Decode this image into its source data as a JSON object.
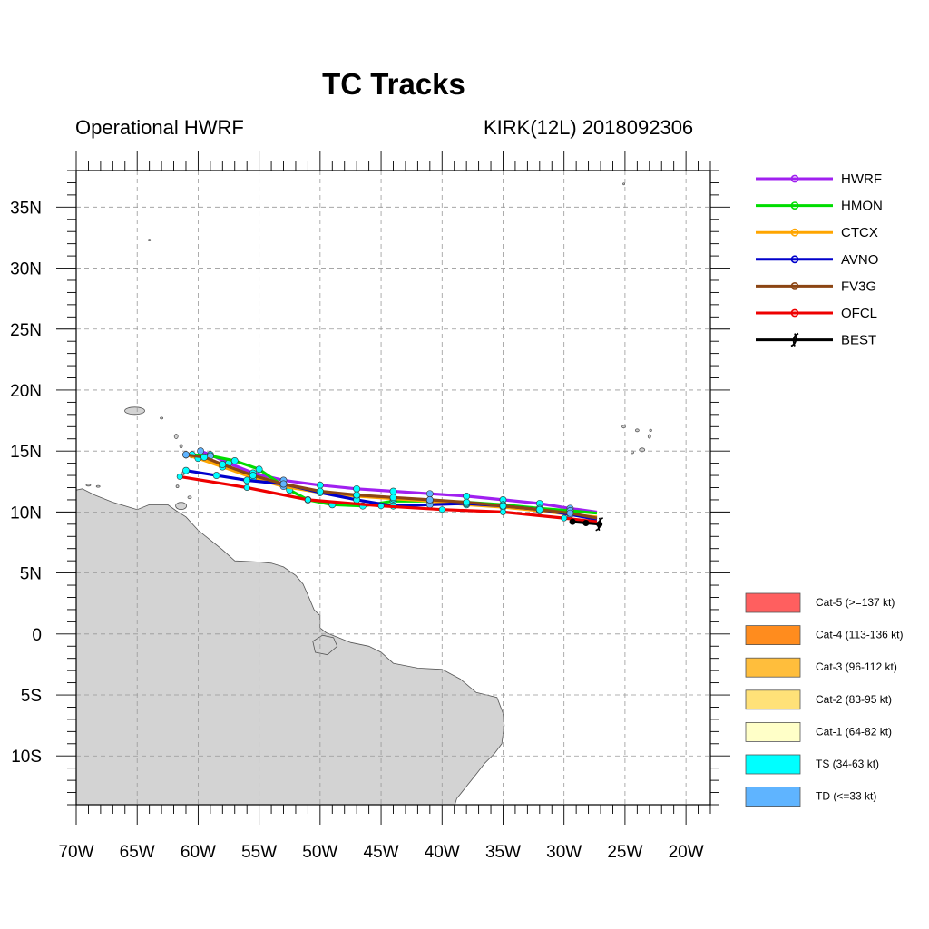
{
  "header": {
    "title": "TC Tracks",
    "left_subtitle": "Operational HWRF",
    "right_subtitle": "KIRK(12L) 2018092306"
  },
  "map": {
    "lon_range": [
      -70,
      -18
    ],
    "lat_range": [
      -14,
      38
    ],
    "grid": true,
    "land_color": "#d3d3d3",
    "x_ticks": [
      {
        "lon": -70,
        "label": "70W"
      },
      {
        "lon": -65,
        "label": "65W"
      },
      {
        "lon": -60,
        "label": "60W"
      },
      {
        "lon": -55,
        "label": "55W"
      },
      {
        "lon": -50,
        "label": "50W"
      },
      {
        "lon": -45,
        "label": "45W"
      },
      {
        "lon": -40,
        "label": "40W"
      },
      {
        "lon": -35,
        "label": "35W"
      },
      {
        "lon": -30,
        "label": "30W"
      },
      {
        "lon": -25,
        "label": "25W"
      },
      {
        "lon": -20,
        "label": "20W"
      }
    ],
    "y_ticks": [
      {
        "lat": 35,
        "label": "35N"
      },
      {
        "lat": 30,
        "label": "30N"
      },
      {
        "lat": 25,
        "label": "25N"
      },
      {
        "lat": 20,
        "label": "20N"
      },
      {
        "lat": 15,
        "label": "15N"
      },
      {
        "lat": 10,
        "label": "10N"
      },
      {
        "lat": 5,
        "label": "5N"
      },
      {
        "lat": 0,
        "label": "0"
      },
      {
        "lat": -5,
        "label": "5S"
      },
      {
        "lat": -10,
        "label": "10S"
      }
    ]
  },
  "tracks": [
    {
      "name": "HWRF",
      "color": "#a020f0",
      "points": [
        [
          -27.3,
          10.0
        ],
        [
          -29.5,
          10.3
        ],
        [
          -32.0,
          10.7
        ],
        [
          -35.0,
          11.0
        ],
        [
          -38.0,
          11.3
        ],
        [
          -41.0,
          11.5
        ],
        [
          -44.0,
          11.7
        ],
        [
          -47.0,
          11.9
        ],
        [
          -50.0,
          12.2
        ],
        [
          -53.0,
          12.6
        ],
        [
          -55.5,
          13.2
        ],
        [
          -57.5,
          14.0
        ],
        [
          -59.0,
          14.7
        ],
        [
          -59.8,
          15.0
        ]
      ]
    },
    {
      "name": "HMON",
      "color": "#00dd00",
      "points": [
        [
          -27.3,
          9.9
        ],
        [
          -29.5,
          10.1
        ],
        [
          -32.0,
          10.3
        ],
        [
          -35.0,
          10.6
        ],
        [
          -38.0,
          10.8
        ],
        [
          -41.0,
          10.9
        ],
        [
          -44.0,
          10.9
        ],
        [
          -46.5,
          10.5
        ],
        [
          -49.0,
          10.6
        ],
        [
          -51.0,
          11.0
        ],
        [
          -52.5,
          11.8
        ],
        [
          -55.0,
          13.5
        ],
        [
          -57.0,
          14.2
        ],
        [
          -59.0,
          14.6
        ],
        [
          -60.5,
          14.7
        ]
      ]
    },
    {
      "name": "CTCX",
      "color": "#ffa500",
      "points": [
        [
          -27.3,
          9.6
        ],
        [
          -29.5,
          9.8
        ],
        [
          -32.0,
          10.1
        ],
        [
          -35.0,
          10.4
        ],
        [
          -38.0,
          10.6
        ],
        [
          -41.0,
          10.9
        ],
        [
          -44.0,
          11.1
        ],
        [
          -47.0,
          11.3
        ],
        [
          -50.0,
          11.6
        ],
        [
          -53.0,
          12.1
        ],
        [
          -55.5,
          12.8
        ],
        [
          -58.0,
          13.7
        ],
        [
          -60.0,
          14.4
        ],
        [
          -61.0,
          14.7
        ]
      ]
    },
    {
      "name": "AVNO",
      "color": "#0000cc",
      "points": [
        [
          -27.3,
          9.4
        ],
        [
          -29.5,
          9.8
        ],
        [
          -32.0,
          10.2
        ],
        [
          -35.0,
          10.5
        ],
        [
          -38.0,
          10.7
        ],
        [
          -41.0,
          10.6
        ],
        [
          -44.0,
          10.5
        ],
        [
          -47.0,
          11.0
        ],
        [
          -50.0,
          11.6
        ],
        [
          -53.0,
          12.3
        ],
        [
          -56.0,
          12.6
        ],
        [
          -58.5,
          13.0
        ],
        [
          -61.0,
          13.4
        ]
      ]
    },
    {
      "name": "FV3G",
      "color": "#8b4513",
      "points": [
        [
          -27.3,
          9.5
        ],
        [
          -29.5,
          9.9
        ],
        [
          -32.0,
          10.2
        ],
        [
          -35.0,
          10.5
        ],
        [
          -38.0,
          10.8
        ],
        [
          -41.0,
          11.0
        ],
        [
          -44.0,
          11.2
        ],
        [
          -47.0,
          11.4
        ],
        [
          -50.0,
          11.7
        ],
        [
          -53.0,
          12.3
        ],
        [
          -55.5,
          13.0
        ],
        [
          -58.0,
          13.9
        ],
        [
          -59.5,
          14.5
        ],
        [
          -61.0,
          14.7
        ]
      ]
    },
    {
      "name": "OFCL",
      "color": "#ee0000",
      "points": [
        [
          -27.3,
          9.2
        ],
        [
          -30.0,
          9.5
        ],
        [
          -35.0,
          10.0
        ],
        [
          -40.0,
          10.2
        ],
        [
          -45.0,
          10.5
        ],
        [
          -51.0,
          11.0
        ],
        [
          -56.0,
          12.0
        ],
        [
          -61.5,
          12.9
        ]
      ]
    },
    {
      "name": "BEST",
      "color": "#000000",
      "points": [
        [
          -27.1,
          9.0
        ],
        [
          -28.2,
          9.1
        ],
        [
          -29.3,
          9.2
        ]
      ]
    }
  ],
  "legend": [
    {
      "name": "HWRF",
      "color": "#a020f0",
      "marker": "circle"
    },
    {
      "name": "HMON",
      "color": "#00dd00",
      "marker": "circle"
    },
    {
      "name": "CTCX",
      "color": "#ffa500",
      "marker": "circle"
    },
    {
      "name": "AVNO",
      "color": "#0000cc",
      "marker": "circle"
    },
    {
      "name": "FV3G",
      "color": "#8b4513",
      "marker": "circle"
    },
    {
      "name": "OFCL",
      "color": "#ee0000",
      "marker": "circle"
    },
    {
      "name": "BEST",
      "color": "#000000",
      "marker": "hurricane"
    }
  ],
  "categories": [
    {
      "label": "Cat-5 (>=137 kt)",
      "color": "#ff5f5f"
    },
    {
      "label": "Cat-4 (113-136 kt)",
      "color": "#ff8c1e"
    },
    {
      "label": "Cat-3 (96-112 kt)",
      "color": "#ffbe3c"
    },
    {
      "label": "Cat-2 (83-95 kt)",
      "color": "#ffe178"
    },
    {
      "label": "Cat-1 (64-82 kt)",
      "color": "#ffffc8"
    },
    {
      "label": "TS (34-63 kt)",
      "color": "#00ffff"
    },
    {
      "label": "TD (<=33 kt)",
      "color": "#5fb4ff"
    }
  ]
}
